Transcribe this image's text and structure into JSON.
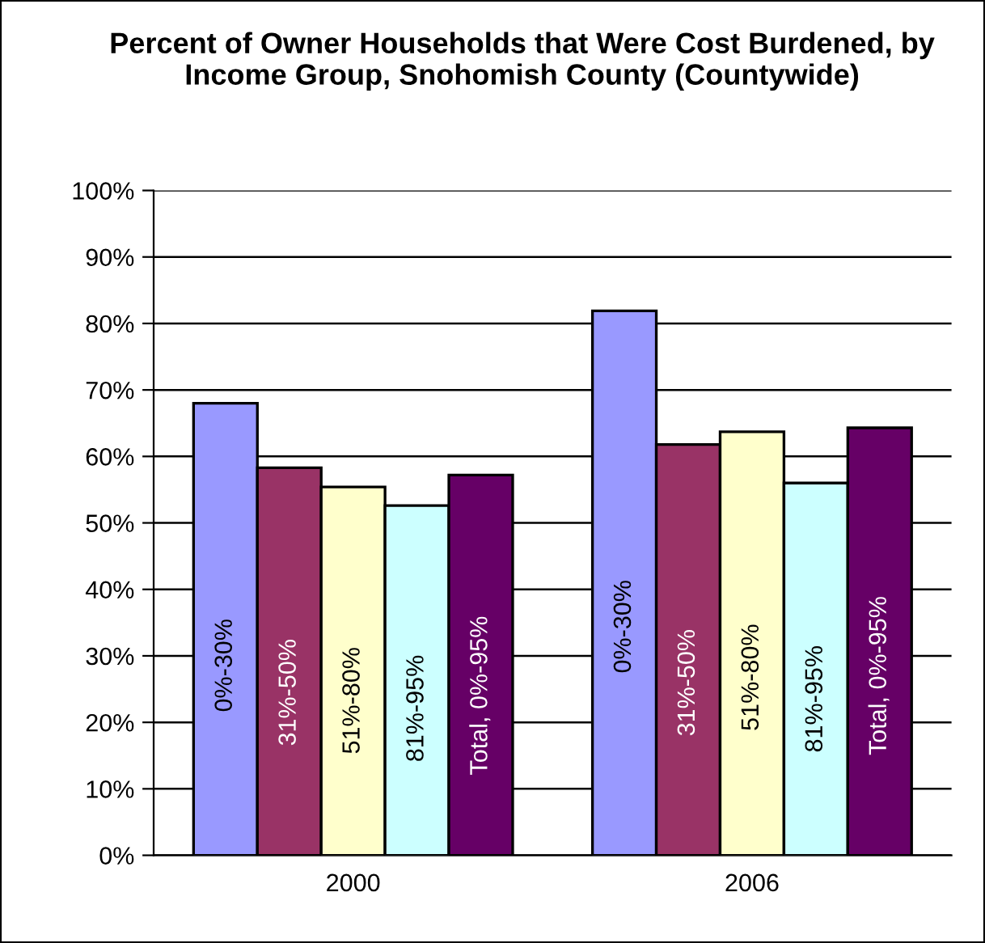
{
  "chart_data": {
    "type": "bar",
    "title": "Percent of Owner Households that Were Cost Burdened, by Income Group, Snohomish County (Countywide)",
    "categories": [
      "2000",
      "2006"
    ],
    "series": [
      {
        "name": "0%-30%",
        "color": "#9999ff",
        "values": [
          68.0,
          81.9
        ]
      },
      {
        "name": "31%-50%",
        "color": "#993366",
        "values": [
          58.3,
          61.8
        ]
      },
      {
        "name": "51%-80%",
        "color": "#ffffcc",
        "values": [
          55.4,
          63.7
        ]
      },
      {
        "name": "81%-95%",
        "color": "#ccffff",
        "values": [
          52.6,
          56.0
        ]
      },
      {
        "name": "Total, 0%-95%",
        "color": "#660066",
        "values": [
          57.2,
          64.3
        ]
      }
    ],
    "ylim": [
      0,
      100
    ],
    "yticks": [
      {
        "value": 0,
        "label": "0%"
      },
      {
        "value": 10,
        "label": "10%"
      },
      {
        "value": 20,
        "label": "20%"
      },
      {
        "value": 30,
        "label": "30%"
      },
      {
        "value": 40,
        "label": "40%"
      },
      {
        "value": 50,
        "label": "50%"
      },
      {
        "value": 60,
        "label": "60%"
      },
      {
        "value": 70,
        "label": "70%"
      },
      {
        "value": 80,
        "label": "80%"
      },
      {
        "value": 90,
        "label": "90%"
      },
      {
        "value": 100,
        "label": "100%"
      }
    ],
    "grid": "y",
    "legend": false
  }
}
